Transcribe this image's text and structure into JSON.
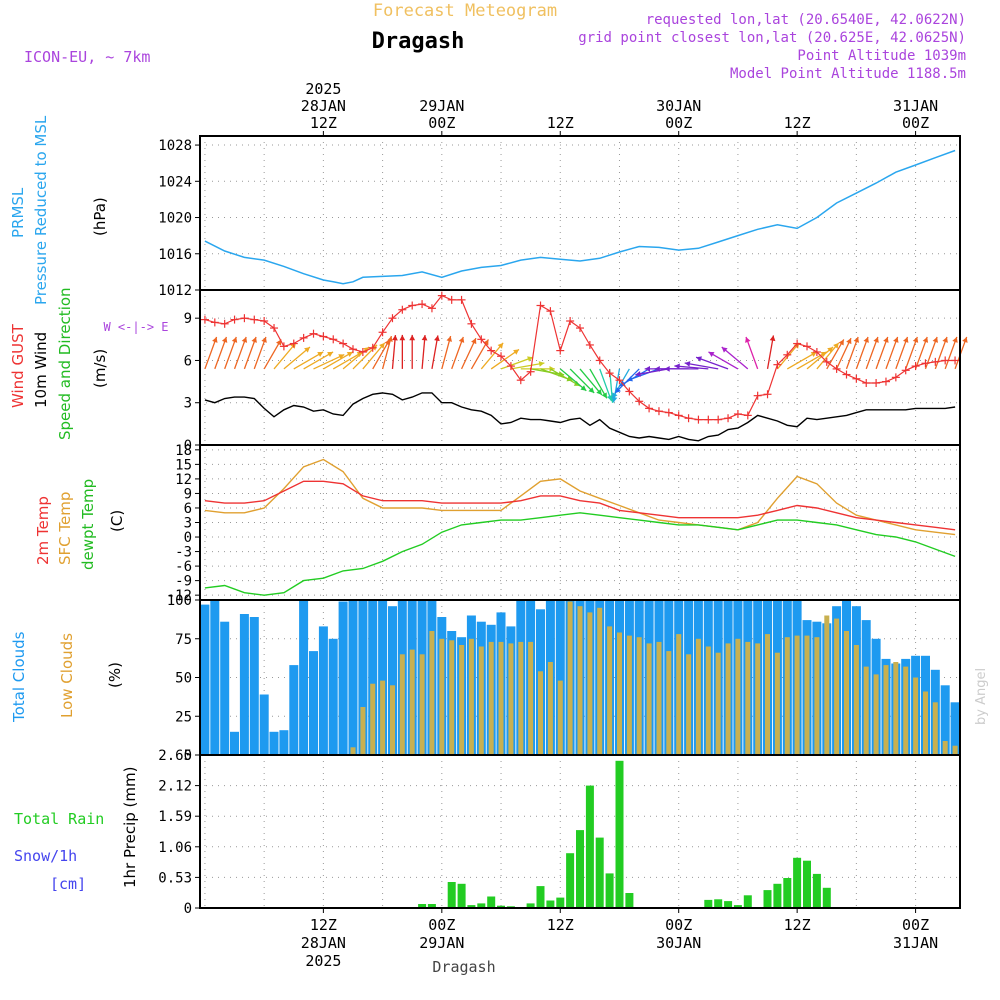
{
  "header": {
    "subtitle": "Forecast Meteogram",
    "location": "Dragash",
    "model": "ICON-EU, ~ 7km",
    "requested": "requested lon,lat (20.6540E, 42.0622N)",
    "grid_point": "grid point closest lon,lat (20.625E, 42.0625N)",
    "point_altitude": "Point Altitude 1039m",
    "model_altitude": "Model Point Altitude 1188.5m",
    "footer_location": "Dragash",
    "credit": "by Angel"
  },
  "colors": {
    "pressure": "#2aa6ee",
    "gust": "#ee3333",
    "wind": "#000000",
    "temp2m": "#ee3333",
    "sfc": "#e0a030",
    "dewpt": "#22cc22",
    "total_clouds": "#1e9af0",
    "low_clouds": "#c8b050",
    "rain": "#22cc22",
    "snow": "#4444ee",
    "label_purple": "#aa44dd",
    "title_orange": "#f0c060"
  },
  "time_axis": {
    "top_ticks": [
      {
        "line1": "2025",
        "line2": "28JAN",
        "line3": "12Z",
        "hour": 12
      },
      {
        "line1": "",
        "line2": "29JAN",
        "line3": "00Z",
        "hour": 24
      },
      {
        "line1": "",
        "line2": "",
        "line3": "12Z",
        "hour": 36
      },
      {
        "line1": "",
        "line2": "30JAN",
        "line3": "00Z",
        "hour": 48
      },
      {
        "line1": "",
        "line2": "",
        "line3": "12Z",
        "hour": 60
      },
      {
        "line1": "",
        "line2": "31JAN",
        "line3": "00Z",
        "hour": 72
      }
    ],
    "bottom_ticks": [
      {
        "line1": "12Z",
        "line2": "28JAN",
        "line3": "2025",
        "hour": 12
      },
      {
        "line1": "00Z",
        "line2": "29JAN",
        "line3": "",
        "hour": 24
      },
      {
        "line1": "12Z",
        "line2": "",
        "line3": "",
        "hour": 36
      },
      {
        "line1": "00Z",
        "line2": "30JAN",
        "line3": "",
        "hour": 48
      },
      {
        "line1": "12Z",
        "line2": "",
        "line3": "",
        "hour": 60
      },
      {
        "line1": "00Z",
        "line2": "31JAN",
        "line3": "",
        "hour": 72
      }
    ]
  },
  "chart_data": [
    {
      "type": "line",
      "id": "pressure",
      "label_lines": [
        "PRMSL",
        "Pressure Reduced to MSL"
      ],
      "unit": "(hPa)",
      "ylim": [
        1012,
        1029
      ],
      "yticks": [
        1012,
        1016,
        1020,
        1024,
        1028
      ],
      "x_hours": [
        0,
        2,
        4,
        6,
        8,
        10,
        12,
        13,
        14,
        15,
        16,
        18,
        20,
        22,
        24,
        26,
        28,
        30,
        32,
        34,
        36,
        38,
        40,
        42,
        44,
        46,
        48,
        50,
        52,
        54,
        56,
        58,
        60,
        62,
        64,
        66,
        68,
        70,
        72,
        74,
        76
      ],
      "values": [
        1017.4,
        1016.3,
        1015.6,
        1015.3,
        1014.6,
        1013.8,
        1013.1,
        1012.9,
        1012.7,
        1012.9,
        1013.4,
        1013.5,
        1013.6,
        1014.0,
        1013.4,
        1014.1,
        1014.5,
        1014.7,
        1015.3,
        1015.6,
        1015.4,
        1015.2,
        1015.5,
        1016.2,
        1016.8,
        1016.7,
        1016.4,
        1016.6,
        1017.3,
        1018.0,
        1018.7,
        1019.2,
        1018.8,
        1020.0,
        1021.6,
        1022.7,
        1023.8,
        1025.0,
        1025.8,
        1026.6,
        1027.4
      ]
    },
    {
      "type": "line",
      "id": "wind",
      "label_lines": [
        "Wind GUST",
        "10m Wind",
        "Speed and Direction"
      ],
      "unit": "(m/s)",
      "ylim": [
        0,
        11
      ],
      "yticks": [
        0,
        3,
        6,
        9
      ],
      "compass": "W <-|-> E",
      "x_hours": [
        0,
        1,
        2,
        3,
        4,
        5,
        6,
        7,
        8,
        9,
        10,
        11,
        12,
        13,
        14,
        15,
        16,
        17,
        18,
        19,
        20,
        21,
        22,
        23,
        24,
        25,
        26,
        27,
        28,
        29,
        30,
        31,
        32,
        33,
        34,
        35,
        36,
        37,
        38,
        39,
        40,
        41,
        42,
        43,
        44,
        45,
        46,
        47,
        48,
        49,
        50,
        51,
        52,
        53,
        54,
        55,
        56,
        57,
        58,
        59,
        60,
        61,
        62,
        63,
        64,
        65,
        66,
        67,
        68,
        69,
        70,
        71,
        72,
        73,
        74,
        75,
        76
      ],
      "series": [
        {
          "name": "Wind GUST",
          "values": [
            8.9,
            8.7,
            8.6,
            8.9,
            9.0,
            8.9,
            8.8,
            8.3,
            7.0,
            7.2,
            7.6,
            7.9,
            7.7,
            7.5,
            7.2,
            6.8,
            6.6,
            6.9,
            8.0,
            9.0,
            9.6,
            9.9,
            10.0,
            9.7,
            10.6,
            10.3,
            10.3,
            8.6,
            7.5,
            6.7,
            6.3,
            5.6,
            4.6,
            5.2,
            9.9,
            9.5,
            6.7,
            8.8,
            8.3,
            7.1,
            6.0,
            5.1,
            4.6,
            3.8,
            3.1,
            2.6,
            2.4,
            2.3,
            2.1,
            1.9,
            1.8,
            1.8,
            1.8,
            1.9,
            2.2,
            2.1,
            3.5,
            3.6,
            5.7,
            6.4,
            7.2,
            7.0,
            6.6,
            5.9,
            5.4,
            5.0,
            4.7,
            4.4,
            4.4,
            4.5,
            4.8,
            5.3,
            5.6,
            5.8,
            5.9,
            6.0,
            6.0
          ]
        },
        {
          "name": "10m Wind",
          "values": [
            3.2,
            3.0,
            3.3,
            3.4,
            3.4,
            3.3,
            2.6,
            2.0,
            2.5,
            2.8,
            2.7,
            2.4,
            2.5,
            2.2,
            2.1,
            2.9,
            3.3,
            3.6,
            3.7,
            3.6,
            3.2,
            3.4,
            3.7,
            3.7,
            3.0,
            3.0,
            2.7,
            2.5,
            2.4,
            2.1,
            1.5,
            1.6,
            1.9,
            1.8,
            1.8,
            1.7,
            1.6,
            1.8,
            1.9,
            1.4,
            1.8,
            1.2,
            0.9,
            0.6,
            0.5,
            0.6,
            0.5,
            0.4,
            0.6,
            0.4,
            0.3,
            0.6,
            0.7,
            1.1,
            1.2,
            1.6,
            2.1,
            1.9,
            1.7,
            1.4,
            1.3,
            1.9,
            1.8,
            1.9,
            2.0,
            2.1,
            2.3,
            2.5,
            2.5,
            2.5,
            2.5,
            2.5,
            2.6,
            2.6,
            2.6,
            2.6,
            2.7
          ]
        }
      ],
      "arrow_hours": [
        0,
        1,
        2,
        3,
        4,
        5,
        6,
        7,
        8,
        9,
        10,
        11,
        12,
        13,
        14,
        15,
        16,
        17,
        18,
        19,
        20,
        21,
        22,
        23,
        24,
        25,
        26,
        27,
        28,
        29,
        30,
        31,
        32,
        33,
        34,
        35,
        36,
        37,
        38,
        39,
        40,
        41,
        42,
        43,
        44,
        45,
        46,
        47,
        48,
        49,
        50,
        51,
        52,
        53,
        54,
        55,
        56,
        57,
        58,
        59,
        60,
        61,
        62,
        63,
        64,
        65,
        66,
        67,
        68,
        69,
        70,
        71,
        72,
        73,
        74,
        75,
        76
      ],
      "arrow_dir_deg": [
        200,
        200,
        200,
        200,
        200,
        200,
        210,
        220,
        230,
        240,
        240,
        245,
        240,
        240,
        230,
        225,
        220,
        210,
        195,
        185,
        180,
        180,
        185,
        190,
        195,
        200,
        205,
        210,
        220,
        235,
        250,
        260,
        270,
        280,
        290,
        300,
        310,
        315,
        320,
        330,
        340,
        355,
        10,
        30,
        45,
        60,
        70,
        80,
        90,
        90,
        90,
        95,
        100,
        110,
        120,
        130,
        160,
        190,
        220,
        240,
        240,
        230,
        220,
        210,
        205,
        200,
        200,
        200,
        200,
        200,
        200,
        200,
        200,
        200,
        200,
        200,
        200
      ]
    },
    {
      "type": "line",
      "id": "temperature",
      "label_lines": [
        "2m Temp",
        "SFC Temp",
        "dewpt Temp"
      ],
      "unit": "(C)",
      "ylim": [
        -13,
        19
      ],
      "yticks": [
        -12,
        -9,
        -6,
        -3,
        0,
        3,
        6,
        9,
        12,
        15,
        18
      ],
      "x_hours": [
        0,
        2,
        4,
        6,
        8,
        10,
        12,
        14,
        16,
        18,
        20,
        22,
        24,
        26,
        28,
        30,
        32,
        34,
        36,
        38,
        40,
        42,
        44,
        46,
        48,
        50,
        52,
        54,
        56,
        58,
        60,
        62,
        64,
        66,
        68,
        70,
        72,
        74,
        76
      ],
      "series": [
        {
          "name": "2m Temp",
          "values": [
            7.5,
            7.0,
            7.0,
            7.5,
            9.5,
            11.5,
            11.5,
            11.0,
            8.5,
            7.5,
            7.5,
            7.5,
            7.0,
            7.0,
            7.0,
            7.0,
            7.5,
            8.5,
            8.5,
            7.5,
            7.0,
            5.5,
            5.0,
            4.5,
            4.0,
            4.0,
            4.0,
            4.0,
            4.5,
            5.5,
            6.5,
            6.0,
            5.0,
            4.0,
            3.5,
            3.0,
            2.5,
            2.0,
            1.5
          ]
        },
        {
          "name": "SFC Temp",
          "values": [
            5.5,
            5.0,
            5.0,
            6.0,
            10.0,
            14.5,
            16.0,
            13.5,
            8.0,
            6.0,
            6.0,
            6.0,
            5.5,
            5.5,
            5.5,
            5.5,
            8.5,
            11.5,
            12.0,
            9.5,
            8.0,
            6.5,
            5.0,
            3.5,
            3.0,
            2.5,
            2.0,
            1.5,
            3.0,
            8.0,
            12.5,
            11.0,
            7.0,
            4.5,
            3.5,
            2.5,
            1.5,
            1.0,
            0.5
          ]
        },
        {
          "name": "dewpt Temp",
          "values": [
            -10.5,
            -10.0,
            -11.5,
            -12.0,
            -11.5,
            -9.0,
            -8.5,
            -7.0,
            -6.5,
            -5.0,
            -3.0,
            -1.5,
            1.0,
            2.5,
            3.0,
            3.5,
            3.5,
            4.0,
            4.5,
            5.0,
            4.5,
            4.0,
            3.5,
            3.0,
            2.5,
            2.5,
            2.0,
            1.5,
            2.5,
            3.5,
            3.5,
            3.0,
            2.5,
            1.5,
            0.5,
            0.0,
            -1.0,
            -2.5,
            -4.0
          ]
        }
      ]
    },
    {
      "type": "bar",
      "id": "clouds",
      "label_lines": [
        "Total Clouds",
        "Low Clouds"
      ],
      "unit": "(%)",
      "ylim": [
        0,
        100
      ],
      "yticks": [
        0,
        25,
        50,
        75,
        100
      ],
      "x_hours": [
        0,
        1,
        2,
        3,
        4,
        5,
        6,
        7,
        8,
        9,
        10,
        11,
        12,
        13,
        14,
        15,
        16,
        17,
        18,
        19,
        20,
        21,
        22,
        23,
        24,
        25,
        26,
        27,
        28,
        29,
        30,
        31,
        32,
        33,
        34,
        35,
        36,
        37,
        38,
        39,
        40,
        41,
        42,
        43,
        44,
        45,
        46,
        47,
        48,
        49,
        50,
        51,
        52,
        53,
        54,
        55,
        56,
        57,
        58,
        59,
        60,
        61,
        62,
        63,
        64,
        65,
        66,
        67,
        68,
        69,
        70,
        71,
        72,
        73,
        74,
        75,
        76
      ],
      "series": [
        {
          "name": "Total Clouds",
          "values": [
            97,
            100,
            86,
            15,
            91,
            89,
            39,
            15,
            16,
            58,
            100,
            67,
            83,
            75,
            99,
            100,
            100,
            100,
            100,
            96,
            100,
            100,
            100,
            100,
            89,
            80,
            76,
            90,
            86,
            84,
            92,
            83,
            100,
            100,
            94,
            100,
            100,
            100,
            100,
            100,
            100,
            100,
            100,
            100,
            100,
            100,
            100,
            100,
            100,
            100,
            100,
            100,
            100,
            100,
            100,
            100,
            100,
            100,
            100,
            100,
            100,
            87,
            86,
            85,
            96,
            100,
            96,
            87,
            75,
            62,
            59,
            62,
            64,
            64,
            55,
            45,
            34
          ]
        },
        {
          "name": "Low Clouds",
          "values": [
            0,
            0,
            0,
            0,
            0,
            0,
            0,
            0,
            0,
            0,
            0,
            0,
            0,
            0,
            0,
            5,
            31,
            46,
            48,
            45,
            65,
            68,
            65,
            80,
            75,
            74,
            71,
            75,
            70,
            73,
            73,
            72,
            73,
            73,
            54,
            60,
            48,
            99,
            96,
            92,
            95,
            83,
            79,
            77,
            76,
            72,
            73,
            67,
            78,
            65,
            75,
            70,
            66,
            72,
            75,
            73,
            72,
            78,
            66,
            76,
            77,
            77,
            76,
            90,
            88,
            80,
            71,
            57,
            52,
            58,
            60,
            57,
            50,
            41,
            34,
            9,
            6
          ]
        }
      ]
    },
    {
      "type": "bar",
      "id": "precip",
      "label_lines": [
        "Total  Rain",
        "Snow/1h",
        "[cm]"
      ],
      "unit": "1hr Precip (mm)",
      "ylim": [
        0,
        2.65
      ],
      "yticks": [
        0,
        0.53,
        1.06,
        1.59,
        2.12,
        2.65
      ],
      "x_hours": [
        22,
        23,
        25,
        26,
        27,
        28,
        29,
        30,
        31,
        33,
        34,
        35,
        36,
        37,
        38,
        39,
        40,
        41,
        42,
        43,
        51,
        52,
        53,
        54,
        55,
        57,
        58,
        59,
        60,
        61,
        62,
        63
      ],
      "values": [
        0.07,
        0.07,
        0.45,
        0.42,
        0.05,
        0.08,
        0.2,
        0.04,
        0.03,
        0.08,
        0.38,
        0.13,
        0.18,
        0.95,
        1.35,
        2.12,
        1.22,
        0.6,
        2.55,
        0.26,
        0.14,
        0.15,
        0.12,
        0.05,
        0.22,
        0.31,
        0.42,
        0.52,
        0.87,
        0.82,
        0.59,
        0.35
      ]
    }
  ]
}
